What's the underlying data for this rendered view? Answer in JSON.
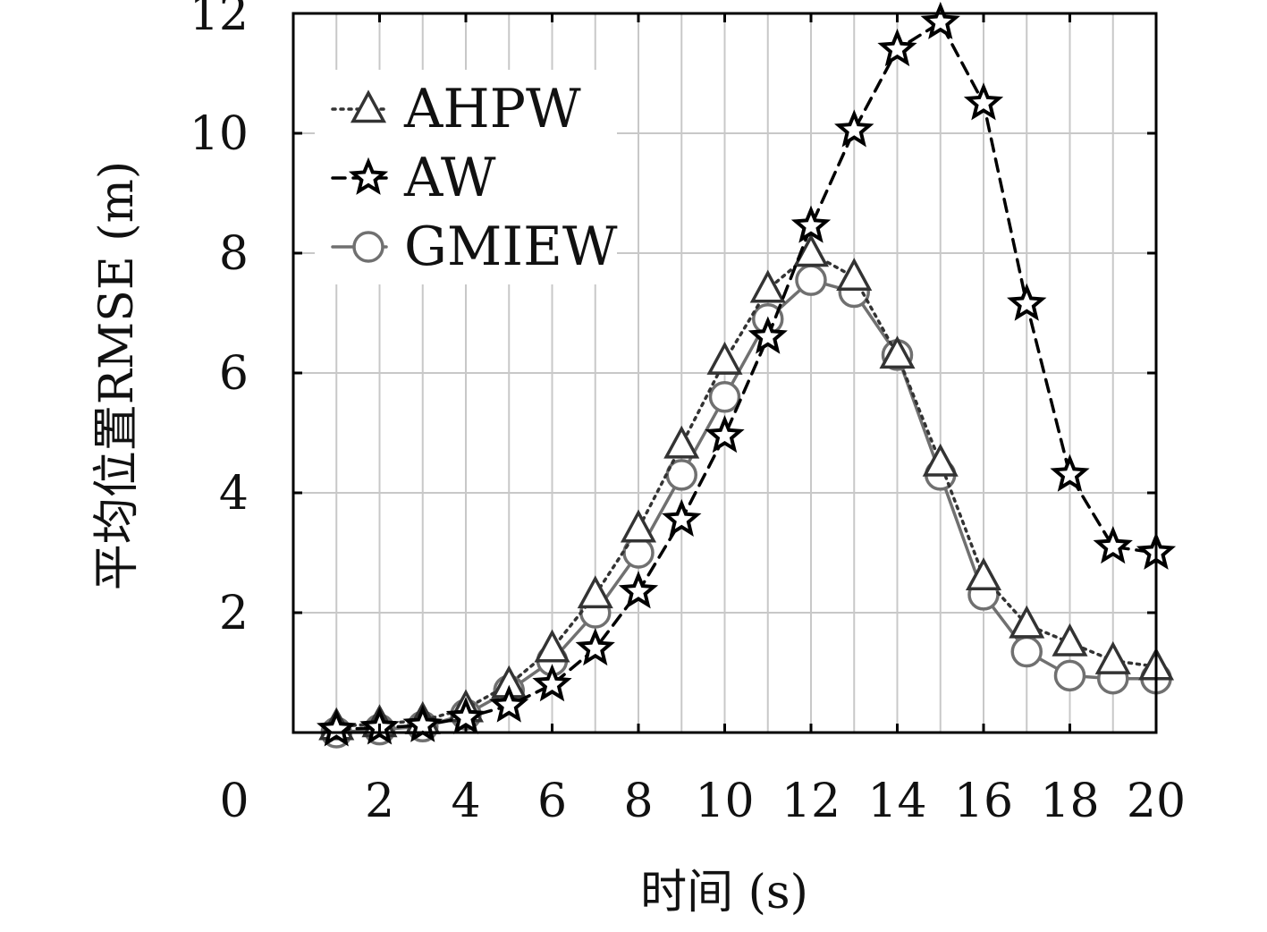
{
  "chart_data": {
    "type": "line",
    "title": "",
    "xlabel": "时间 (s)",
    "ylabel": "平均位置RMSE (m)",
    "xlim": [
      0,
      20
    ],
    "ylim": [
      0,
      12
    ],
    "grid": true,
    "legend_position": "top-left",
    "x_tick_labels": [
      "0",
      "2",
      "4",
      "6",
      "8",
      "10",
      "12",
      "14",
      "16",
      "18",
      "20"
    ],
    "y_tick_labels": [
      "2",
      "4",
      "6",
      "8",
      "10",
      "12"
    ],
    "x": [
      1,
      2,
      3,
      4,
      5,
      6,
      7,
      8,
      9,
      10,
      11,
      12,
      13,
      14,
      15,
      16,
      17,
      18,
      19,
      20
    ],
    "series": [
      {
        "name": "AHPW",
        "marker": "triangle",
        "line_style": "dotted",
        "color": "#333333",
        "values": [
          0.1,
          0.15,
          0.2,
          0.4,
          0.8,
          1.4,
          2.3,
          3.4,
          4.8,
          6.2,
          7.4,
          8.0,
          7.6,
          6.3,
          4.5,
          2.6,
          1.8,
          1.5,
          1.2,
          1.1
        ]
      },
      {
        "name": "AW",
        "marker": "star",
        "line_style": "dashed",
        "color": "#000000",
        "values": [
          0.05,
          0.08,
          0.12,
          0.25,
          0.45,
          0.8,
          1.4,
          2.35,
          3.55,
          4.95,
          6.6,
          8.45,
          10.05,
          11.4,
          11.85,
          10.5,
          7.15,
          4.3,
          3.1,
          3.0
        ]
      },
      {
        "name": "GMIEW",
        "marker": "circle",
        "line_style": "solid",
        "color": "#707070",
        "values": [
          0.0,
          0.05,
          0.1,
          0.3,
          0.7,
          1.2,
          2.0,
          3.0,
          4.3,
          5.6,
          6.9,
          7.55,
          7.35,
          6.3,
          4.3,
          2.3,
          1.35,
          0.95,
          0.9,
          0.9
        ]
      }
    ]
  }
}
